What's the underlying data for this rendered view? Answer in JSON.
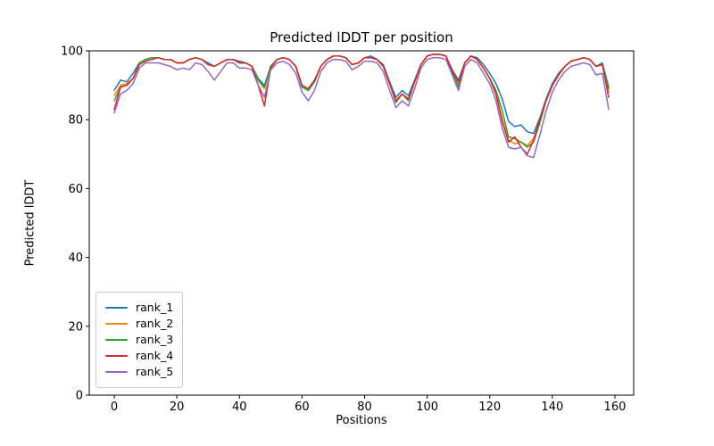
{
  "figure": {
    "title": "Predicted lDDT per position"
  },
  "chart_data": {
    "type": "line",
    "title": "Predicted lDDT per position",
    "xlabel": "Positions",
    "ylabel": "Predicted lDDT",
    "xlim": [
      -8,
      166
    ],
    "ylim": [
      0,
      100
    ],
    "xticks": [
      0,
      20,
      40,
      60,
      80,
      100,
      120,
      140,
      160
    ],
    "yticks": [
      0,
      20,
      40,
      60,
      80,
      100
    ],
    "grid": false,
    "legend": {
      "position": "lower left",
      "entries": [
        "rank_1",
        "rank_2",
        "rank_3",
        "rank_4",
        "rank_5"
      ]
    },
    "colors": {
      "background": "#ffffff",
      "axis": "#000000",
      "text": "#000000",
      "legend_border": "#cccccc"
    },
    "x": [
      0,
      2,
      4,
      6,
      8,
      10,
      12,
      14,
      16,
      18,
      20,
      22,
      24,
      26,
      28,
      30,
      32,
      34,
      36,
      38,
      40,
      42,
      44,
      46,
      48,
      50,
      52,
      54,
      56,
      58,
      60,
      62,
      64,
      66,
      68,
      70,
      72,
      74,
      76,
      78,
      80,
      82,
      84,
      86,
      88,
      90,
      92,
      94,
      96,
      98,
      100,
      102,
      104,
      106,
      108,
      110,
      112,
      114,
      116,
      118,
      120,
      122,
      124,
      126,
      128,
      130,
      132,
      134,
      136,
      138,
      140,
      142,
      144,
      146,
      148,
      150,
      152,
      154,
      156,
      158
    ],
    "series": [
      {
        "name": "rank_1",
        "color": "#1f77b4",
        "values": [
          88.5,
          91.5,
          91,
          93.5,
          96.5,
          97.5,
          98,
          98,
          97.5,
          97.5,
          96.5,
          96.5,
          97.5,
          98,
          97.5,
          96.5,
          95.5,
          96.5,
          97.5,
          97.5,
          97,
          96.5,
          95.5,
          92,
          90,
          95.5,
          97.5,
          98,
          97.5,
          95.5,
          89.5,
          88.5,
          91,
          95.5,
          97.5,
          98.5,
          98.5,
          98,
          96,
          96.5,
          98,
          98.5,
          97.5,
          96,
          91,
          86.5,
          88.5,
          87,
          91.5,
          96,
          98.5,
          99,
          99,
          98.5,
          94.5,
          91.5,
          96.5,
          98.5,
          98,
          96,
          93.5,
          90.5,
          86,
          79.5,
          78,
          78.5,
          76.5,
          76,
          80.5,
          86,
          90.5,
          93.5,
          95.5,
          97,
          97.5,
          98,
          97.5,
          95.5,
          96.5,
          89.5
        ]
      },
      {
        "name": "rank_2",
        "color": "#ff7f0e",
        "values": [
          87,
          90,
          90.5,
          92,
          96.5,
          97.5,
          98,
          98,
          97.5,
          97.5,
          96.5,
          96.5,
          97.5,
          98,
          97.5,
          96,
          95.5,
          96.5,
          97.5,
          97.5,
          96.5,
          96.5,
          95.5,
          91.5,
          89,
          95.5,
          97.5,
          98,
          97.5,
          95.5,
          90,
          89,
          91.5,
          95.5,
          97.5,
          98.5,
          98.5,
          98,
          96,
          96.5,
          98,
          98,
          97.5,
          95.5,
          90.5,
          85.5,
          87.5,
          86,
          91,
          96,
          98.5,
          99,
          99,
          98.5,
          94,
          90,
          96.5,
          98.5,
          97.5,
          95,
          92,
          87.5,
          80,
          74,
          73,
          73.5,
          72.5,
          74.5,
          79.5,
          85.5,
          90,
          93,
          95.5,
          97,
          97.5,
          98,
          97.5,
          95.5,
          96,
          88
        ]
      },
      {
        "name": "rank_3",
        "color": "#2ca02c",
        "values": [
          85.5,
          89.5,
          90,
          92,
          96.5,
          97.5,
          98,
          98,
          97.5,
          97.5,
          96.5,
          96.5,
          97.5,
          98,
          97.5,
          96,
          95.5,
          96.5,
          97.5,
          97.5,
          96.5,
          96.5,
          95.5,
          91.5,
          89.5,
          95.5,
          97.5,
          98,
          97.5,
          95.5,
          89.5,
          88.5,
          91,
          95.5,
          97.5,
          98.5,
          98.5,
          98,
          96,
          96.5,
          98,
          98,
          97.5,
          95.5,
          90.5,
          85,
          87.5,
          85.5,
          91,
          96,
          98.5,
          99,
          99,
          98.5,
          94,
          89.5,
          96.5,
          98.5,
          97.5,
          95,
          92,
          88.5,
          82.5,
          75,
          74.5,
          73.5,
          72,
          73.5,
          79,
          85.5,
          90,
          93,
          95.5,
          97,
          97.5,
          98,
          97.5,
          95.5,
          96,
          89
        ]
      },
      {
        "name": "rank_4",
        "color": "#d62728",
        "values": [
          83,
          89.5,
          90,
          92,
          96,
          97,
          97.5,
          98,
          97.5,
          97.5,
          96.5,
          96.5,
          97.5,
          98,
          97.5,
          96,
          95.5,
          96.5,
          97.5,
          97.5,
          96.5,
          96.5,
          95.5,
          90,
          84,
          95,
          97.5,
          98,
          97.5,
          95.5,
          90,
          89,
          91.5,
          95.5,
          97.5,
          98.5,
          98.5,
          98,
          96,
          96.5,
          98,
          98,
          97.5,
          95.5,
          90.5,
          85.5,
          87.5,
          86,
          91,
          96,
          98.5,
          99,
          99,
          98.5,
          94,
          91,
          96.5,
          98.5,
          97.5,
          95,
          92,
          87.5,
          79.5,
          73.5,
          75,
          72,
          70,
          74,
          80,
          85.5,
          90,
          93,
          95.5,
          97,
          97.5,
          98,
          97.5,
          95.5,
          96,
          86.5
        ]
      },
      {
        "name": "rank_5",
        "color": "#9467bd",
        "values": [
          82,
          87.5,
          88.5,
          90.5,
          95,
          96.5,
          96.5,
          96.5,
          96,
          95.5,
          94.5,
          95,
          94.5,
          96.5,
          96,
          94,
          91.5,
          94,
          96.5,
          96.5,
          95,
          95,
          94.5,
          90,
          86.5,
          94.5,
          96.5,
          97,
          96,
          93.5,
          88,
          85.5,
          88.5,
          94,
          96.5,
          97.5,
          97.5,
          97,
          94.5,
          95.5,
          97,
          97,
          96.5,
          94,
          88.5,
          83.5,
          85.5,
          84,
          89,
          95,
          97.5,
          98,
          98,
          97.5,
          93,
          88.5,
          95.5,
          97.5,
          96.5,
          93.5,
          90.5,
          85.5,
          77.5,
          72,
          71.5,
          72,
          69.5,
          69,
          75.5,
          82.5,
          88,
          91.5,
          94,
          95.5,
          96,
          96.5,
          96,
          93,
          93.5,
          83
        ]
      }
    ]
  }
}
